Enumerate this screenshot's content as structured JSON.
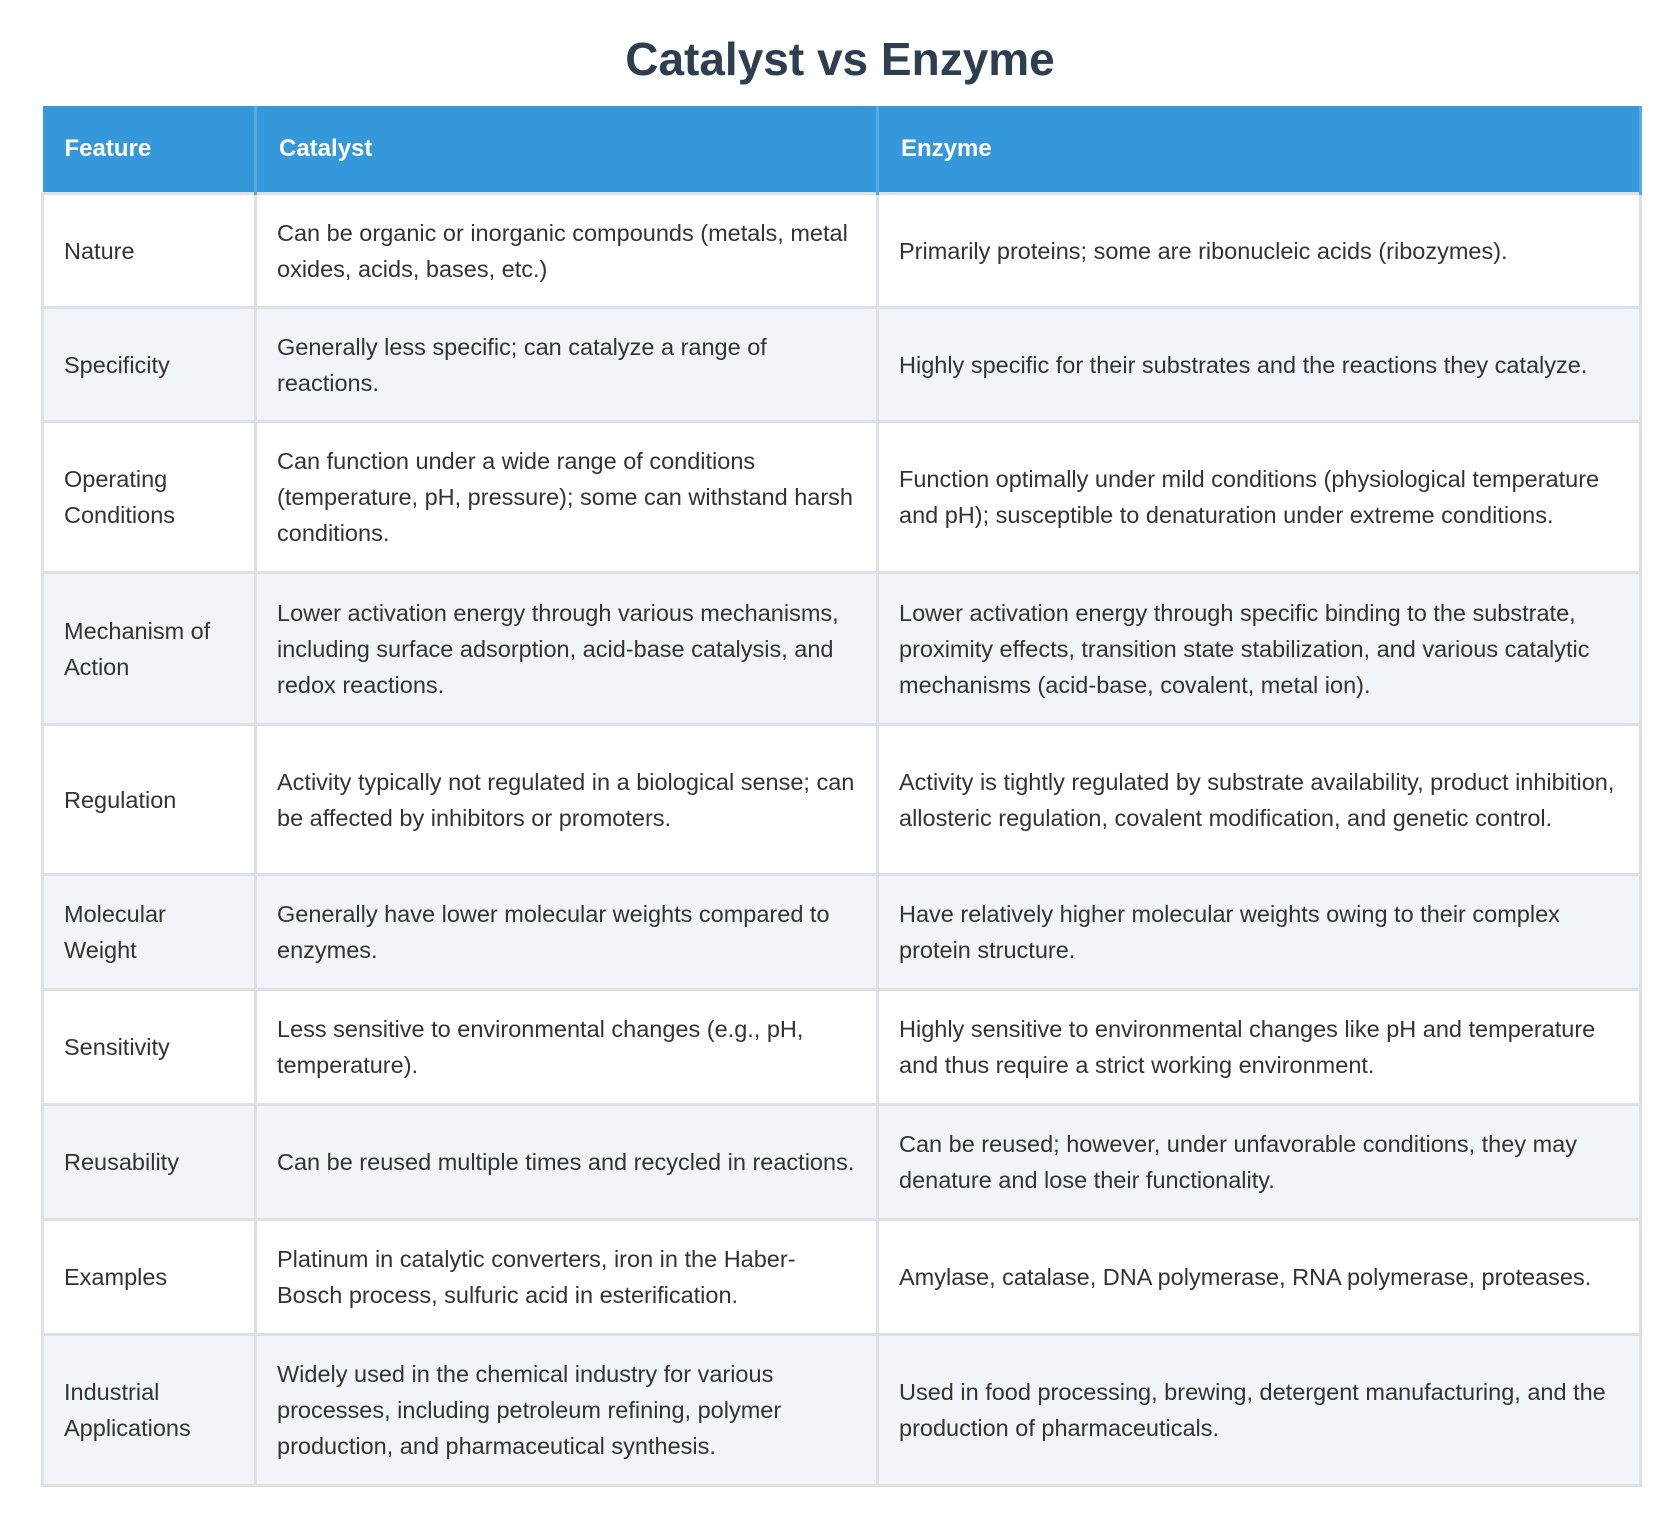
{
  "header": {
    "title": "Catalyst vs Enzyme"
  },
  "table": {
    "columns": [
      "Feature",
      "Catalyst",
      "Enzyme"
    ],
    "rows": [
      [
        "Nature",
        "Can be organic or inorganic compounds (metals, metal oxides, acids, bases, etc.)",
        "Primarily proteins; some are ribonucleic acids (ribozymes)."
      ],
      [
        "Specificity",
        "Generally less specific; can catalyze a range of reactions.",
        "Highly specific for their substrates and the reactions they catalyze."
      ],
      [
        "Operating Conditions",
        "Can function under a wide range of conditions (temperature, pH, pressure); some can withstand harsh conditions.",
        "Function optimally under mild conditions (physiological temperature and pH); susceptible to denaturation under extreme conditions."
      ],
      [
        "Mechanism of Action",
        "Lower activation energy through various mechanisms, including surface adsorption, acid-base catalysis, and redox reactions.",
        "Lower activation energy through specific binding to the substrate, proximity effects, transition state stabilization, and various catalytic mechanisms (acid-base, covalent, metal ion)."
      ],
      [
        "Regulation",
        "Activity typically not regulated in a biological sense; can be affected by inhibitors or promoters.",
        "Activity is tightly regulated by substrate availability, product inhibition, allosteric regulation, covalent modification, and genetic control."
      ],
      [
        "Molecular Weight",
        "Generally have lower molecular weights compared to enzymes.",
        "Have relatively higher molecular weights owing to their complex protein structure."
      ],
      [
        "Sensitivity",
        "Less sensitive to environmental changes (e.g., pH, temperature).",
        "Highly sensitive to environmental changes like pH and temperature and thus require a strict working environment."
      ],
      [
        "Reusability",
        "Can be reused multiple times and recycled in reactions.",
        "Can be reused; however, under unfavorable conditions, they may denature and lose their functionality."
      ],
      [
        "Examples",
        "Platinum in catalytic converters, iron in the Haber-Bosch process, sulfuric acid in esterification.",
        "Amylase, catalase, DNA polymerase, RNA polymerase, proteases."
      ],
      [
        "Industrial Applications",
        "Widely used in the chemical industry for various processes, including petroleum refining, polymer production, and pharmaceutical synthesis.",
        "Used in food processing, brewing, detergent manufacturing, and the production of pharmaceuticals."
      ]
    ]
  }
}
